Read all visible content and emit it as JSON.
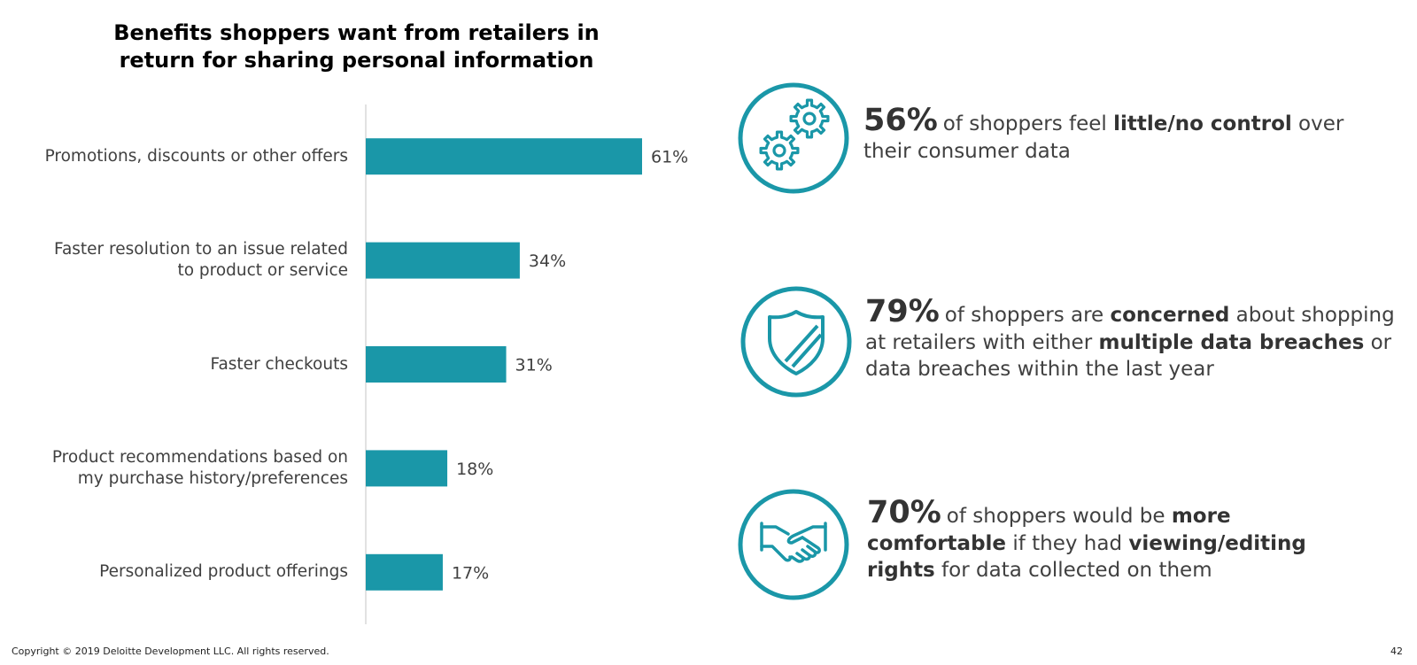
{
  "chart_data": {
    "type": "bar",
    "orientation": "horizontal",
    "title_lines": [
      "Benefits shoppers want from retailers in",
      "return for sharing personal information"
    ],
    "categories": [
      [
        "Promotions, discounts or other offers"
      ],
      [
        "Faster resolution to an issue related",
        "to product or service"
      ],
      [
        "Faster checkouts"
      ],
      [
        "Product recommendations based on",
        "my purchase history/preferences"
      ],
      [
        "Personalized product offerings"
      ]
    ],
    "values": [
      61,
      34,
      31,
      18,
      17
    ],
    "value_labels": [
      "61%",
      "34%",
      "31%",
      "18%",
      "17%"
    ],
    "xlim": [
      0,
      100
    ],
    "grid": false,
    "bar_color": "#1a97a8"
  },
  "stats": [
    {
      "big": "56%",
      "runs": [
        {
          "text": "of shoppers feel ",
          "bold": false
        },
        {
          "text": "little/no control",
          "bold": true
        },
        {
          "text": " over their consumer data",
          "bold": false
        }
      ],
      "icon": "gears-icon"
    },
    {
      "big": "79%",
      "runs": [
        {
          "text": "of shoppers are ",
          "bold": false
        },
        {
          "text": "concerned",
          "bold": true
        },
        {
          "text": " about shopping at retailers with either ",
          "bold": false
        },
        {
          "text": "multiple data breaches",
          "bold": true
        },
        {
          "text": " or data breaches within the last year",
          "bold": false
        }
      ],
      "icon": "shield-icon"
    },
    {
      "big": "70%",
      "runs": [
        {
          "text": "of shoppers would be ",
          "bold": false
        },
        {
          "text": "more comfortable",
          "bold": true
        },
        {
          "text": " if they had ",
          "bold": false
        },
        {
          "text": "viewing/editing rights",
          "bold": true
        },
        {
          "text": " for data collected on them",
          "bold": false
        }
      ],
      "icon": "handshake-icon"
    }
  ],
  "accent_color": "#1a97a8",
  "footer": {
    "copyright": "Copyright © 2019 Deloitte Development LLC. All rights reserved.",
    "page_number": "42"
  }
}
